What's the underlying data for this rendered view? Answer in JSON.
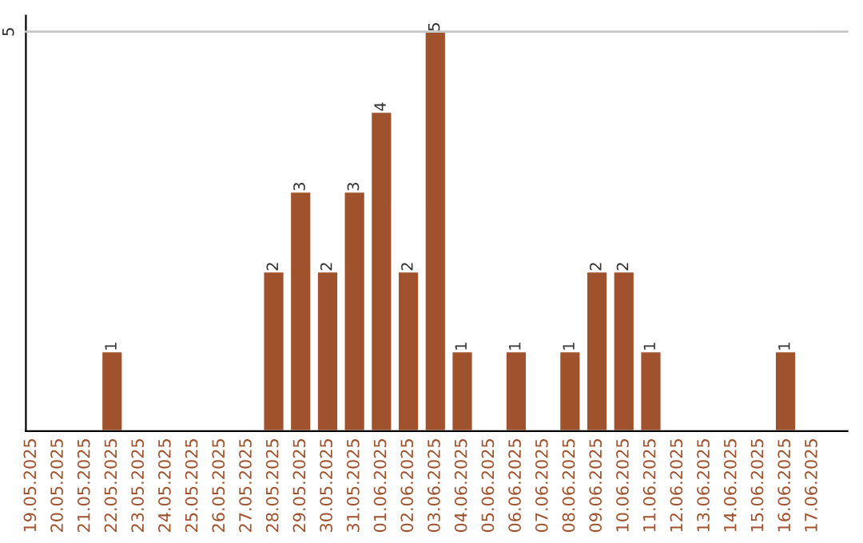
{
  "chart_data": {
    "type": "bar",
    "categories": [
      "19.05.2025",
      "20.05.2025",
      "21.05.2025",
      "22.05.2025",
      "23.05.2025",
      "24.05.2025",
      "25.05.2025",
      "26.05.2025",
      "27.05.2025",
      "28.05.2025",
      "29.05.2025",
      "30.05.2025",
      "31.05.2025",
      "01.06.2025",
      "02.06.2025",
      "03.06.2025",
      "04.06.2025",
      "05.06.2025",
      "06.06.2025",
      "07.06.2025",
      "08.06.2025",
      "09.06.2025",
      "10.06.2025",
      "11.06.2025",
      "12.06.2025",
      "13.06.2025",
      "14.06.2025",
      "15.06.2025",
      "16.06.2025",
      "17.06.2025"
    ],
    "values": [
      null,
      null,
      null,
      1,
      null,
      null,
      null,
      null,
      null,
      2,
      3,
      2,
      3,
      4,
      2,
      5,
      1,
      null,
      1,
      null,
      1,
      2,
      2,
      1,
      null,
      null,
      null,
      null,
      1,
      null
    ],
    "value_labels": [
      null,
      null,
      null,
      "1",
      null,
      null,
      null,
      null,
      null,
      "2",
      "3",
      "2",
      "3",
      "4",
      "2",
      "5",
      "1",
      null,
      "1",
      null,
      "1",
      "2",
      "2",
      "1",
      null,
      null,
      null,
      null,
      "1",
      null
    ],
    "color": "#a0522d",
    "ylim": [
      0,
      5.2
    ],
    "yticks": [
      5
    ],
    "grid": "y"
  }
}
